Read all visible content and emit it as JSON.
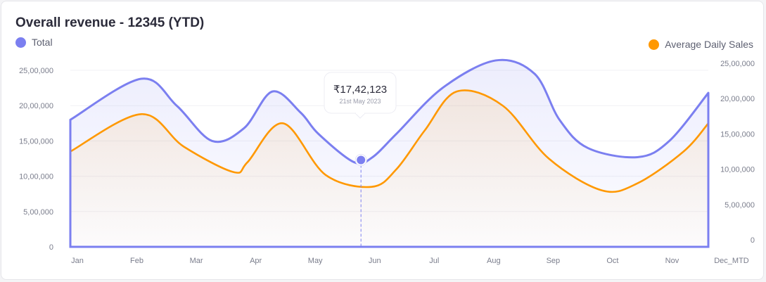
{
  "card": {
    "title": "Overall revenue - 12345 (YTD)"
  },
  "chart_data": {
    "type": "area",
    "title": "Overall revenue - 12345 (YTD)",
    "categories": [
      "Jan",
      "Feb",
      "Mar",
      "Apr",
      "May",
      "Jun",
      "Jul",
      "Aug",
      "Sep",
      "Oct",
      "Nov",
      "Dec_MTD"
    ],
    "ylim": [
      0,
      2500000
    ],
    "y_ticks": [
      "0",
      "5,00,000",
      "10,00,000",
      "15,00,000",
      "20,00,000",
      "25,00,000"
    ],
    "y2lim": [
      0,
      2500000
    ],
    "y2_ticks": [
      "0",
      "5,00,000",
      "10,00,000",
      "15,00,000",
      "20,00,000",
      "25,00,000"
    ],
    "series": [
      {
        "name": "Total",
        "color": "#7b7ff0",
        "axis": "left",
        "points": [
          [
            0,
            1800000
          ],
          [
            1,
            2380000
          ],
          [
            1.5,
            2000000
          ],
          [
            2.0,
            1500000
          ],
          [
            2.45,
            1680000
          ],
          [
            2.85,
            2200000
          ],
          [
            3.25,
            1900000
          ],
          [
            3.5,
            1600000
          ],
          [
            4.0,
            1200000
          ],
          [
            4.25,
            1260000
          ],
          [
            4.6,
            1600000
          ],
          [
            5.25,
            2250000
          ],
          [
            6.0,
            2640000
          ],
          [
            6.55,
            2450000
          ],
          [
            6.9,
            1800000
          ],
          [
            7.3,
            1400000
          ],
          [
            8.0,
            1270000
          ],
          [
            8.45,
            1500000
          ],
          [
            9.0,
            2180000
          ]
        ]
      },
      {
        "name": "Average Daily Sales",
        "color": "#ff9800",
        "axis": "right",
        "points": [
          [
            0,
            1250000
          ],
          [
            1.0,
            1780000
          ],
          [
            1.6,
            1320000
          ],
          [
            2.3,
            960000
          ],
          [
            2.5,
            1100000
          ],
          [
            3.0,
            1650000
          ],
          [
            3.6,
            920000
          ],
          [
            4.25,
            750000
          ],
          [
            4.6,
            1000000
          ],
          [
            5.0,
            1550000
          ],
          [
            5.45,
            2100000
          ],
          [
            6.1,
            1900000
          ],
          [
            6.75,
            1150000
          ],
          [
            7.5,
            700000
          ],
          [
            8.0,
            800000
          ],
          [
            8.65,
            1250000
          ],
          [
            9.0,
            1650000
          ]
        ]
      }
    ],
    "tooltip": {
      "value": "₹17,42,123",
      "date": "21st May 2023"
    }
  }
}
